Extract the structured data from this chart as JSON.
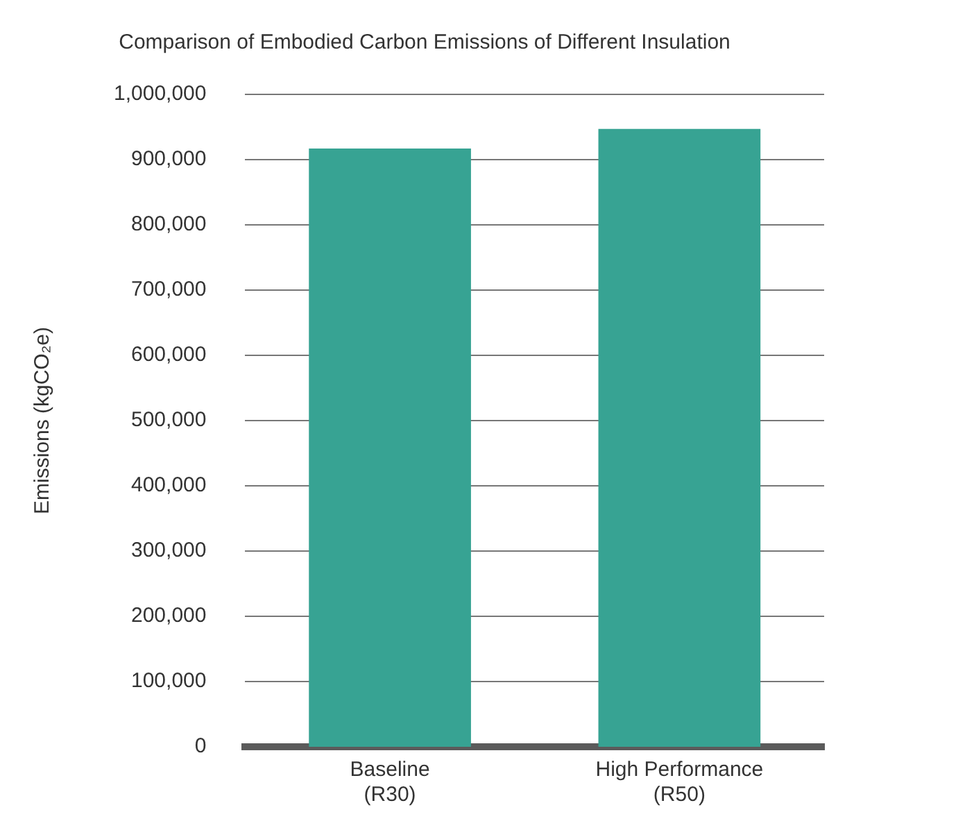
{
  "chart_data": {
    "type": "bar",
    "title": "Comparison of Embodied Carbon Emissions of Different Insulation",
    "ylabel": "Emissions (kgCO₂e)",
    "categories": [
      "Baseline\n(R30)",
      "High Performance\n(R50)"
    ],
    "values": [
      917000,
      947000
    ],
    "color": "#37a393",
    "ylim": [
      0,
      1000000
    ],
    "yticks": [
      0,
      {
        "value": 100000,
        "label": "100,000"
      },
      {
        "value": 200000,
        "label": "200,000"
      },
      {
        "value": 300000,
        "label": "300,000"
      },
      {
        "value": 400000,
        "label": "400,000"
      },
      {
        "value": 500000,
        "label": "500,000"
      },
      {
        "value": 600000,
        "label": "600,000"
      },
      {
        "value": 700000,
        "label": "700,000"
      },
      {
        "value": 800000,
        "label": "800,000"
      },
      {
        "value": 900000,
        "label": "900,000"
      },
      {
        "value": 1000000,
        "label": "1,000,000"
      }
    ],
    "grid": "y",
    "legend": false
  }
}
